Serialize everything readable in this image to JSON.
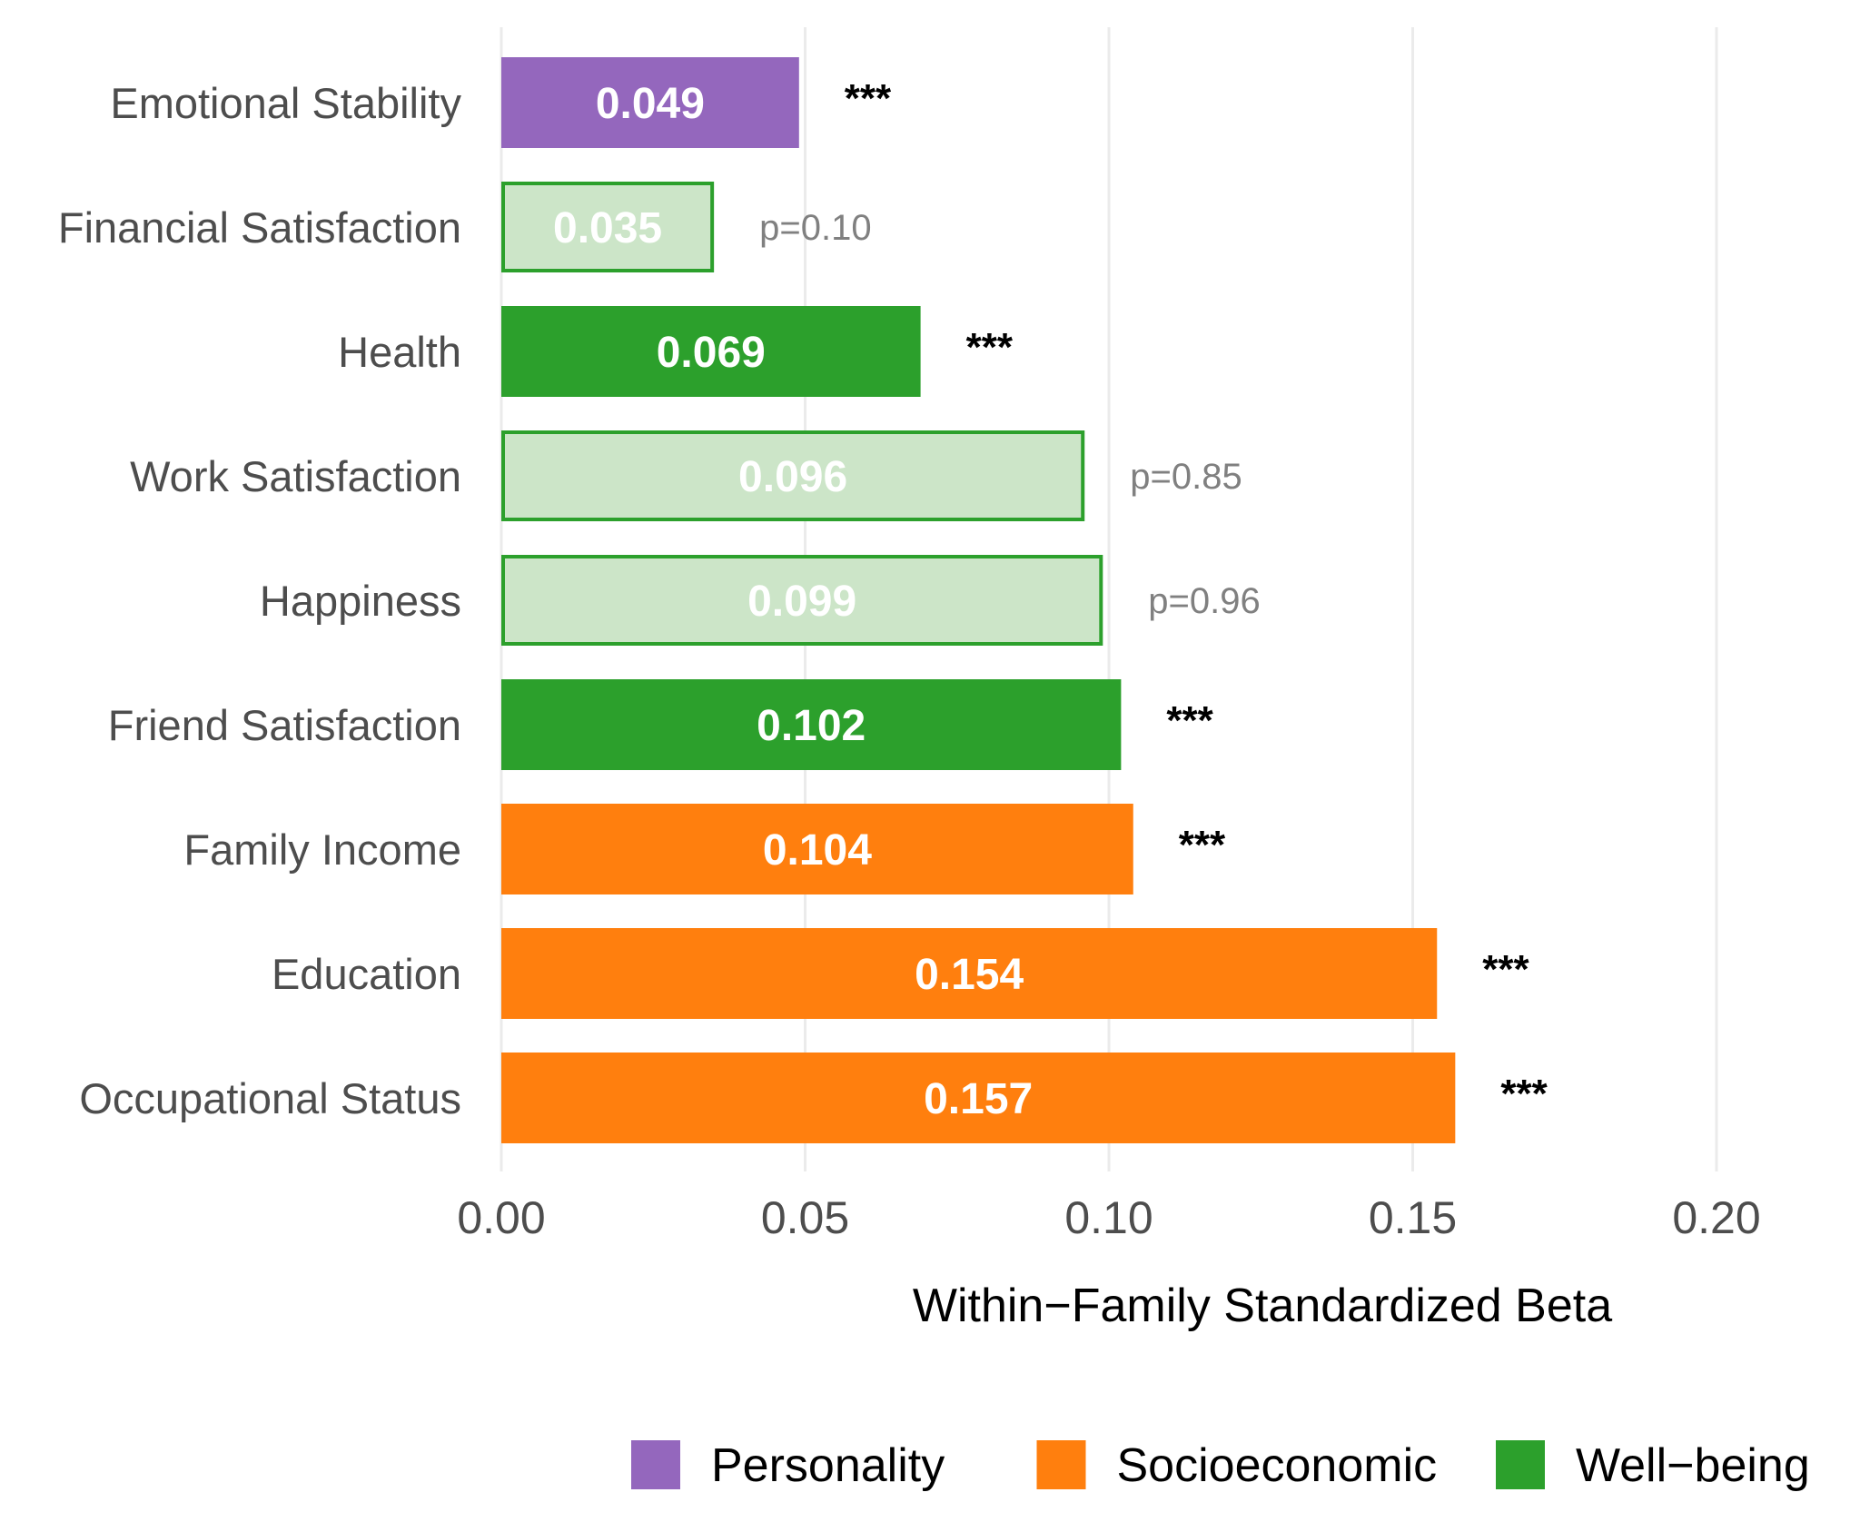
{
  "chart_data": {
    "type": "bar",
    "orientation": "horizontal",
    "title": "",
    "xlabel": "Within−Family Standardized Beta",
    "ylabel": "",
    "xlim": [
      0,
      0.2
    ],
    "x_ticks": [
      "0.00",
      "0.05",
      "0.10",
      "0.15",
      "0.20"
    ],
    "x_tick_values": [
      0,
      0.05,
      0.1,
      0.15,
      0.2
    ],
    "grid": true,
    "legend": {
      "position": "bottom-right",
      "entries": [
        {
          "name": "Personality",
          "color": "#9467bd"
        },
        {
          "name": "Socioeconomic",
          "color": "#ff7f0e"
        },
        {
          "name": "Well−being",
          "color": "#2ca02c"
        }
      ]
    },
    "bars": [
      {
        "category": "Emotional Stability",
        "value": 0.049,
        "label": "0.049",
        "group": "Personality",
        "significant": true,
        "annotation": "***"
      },
      {
        "category": "Financial Satisfaction",
        "value": 0.035,
        "label": "0.035",
        "group": "Well−being",
        "significant": false,
        "annotation": "p=0.10"
      },
      {
        "category": "Health",
        "value": 0.069,
        "label": "0.069",
        "group": "Well−being",
        "significant": true,
        "annotation": "***"
      },
      {
        "category": "Work Satisfaction",
        "value": 0.096,
        "label": "0.096",
        "group": "Well−being",
        "significant": false,
        "annotation": "p=0.85"
      },
      {
        "category": "Happiness",
        "value": 0.099,
        "label": "0.099",
        "group": "Well−being",
        "significant": false,
        "annotation": "p=0.96"
      },
      {
        "category": "Friend Satisfaction",
        "value": 0.102,
        "label": "0.102",
        "group": "Well−being",
        "significant": true,
        "annotation": "***"
      },
      {
        "category": "Family Income",
        "value": 0.104,
        "label": "0.104",
        "group": "Socioeconomic",
        "significant": true,
        "annotation": "***"
      },
      {
        "category": "Education",
        "value": 0.154,
        "label": "0.154",
        "group": "Socioeconomic",
        "significant": true,
        "annotation": "***"
      },
      {
        "category": "Occupational Status",
        "value": 0.157,
        "label": "0.157",
        "group": "Socioeconomic",
        "significant": true,
        "annotation": "***"
      }
    ],
    "colors": {
      "nonsignificant_fill": "#cce5c8",
      "gridline": "#ebebeb",
      "bar_text": "#ffffff",
      "ns_text": "#808080"
    }
  }
}
